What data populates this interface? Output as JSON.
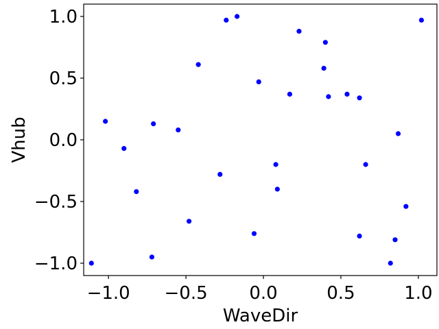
{
  "chart_data": {
    "type": "scatter",
    "title": "",
    "xlabel": "WaveDir",
    "ylabel": "Vhub",
    "xlim": [
      -1.16,
      1.12
    ],
    "ylim": [
      -1.1,
      1.1
    ],
    "xticks": [
      -1.0,
      -0.5,
      0.0,
      0.5,
      1.0
    ],
    "yticks": [
      -1.0,
      -0.5,
      0.0,
      0.5,
      1.0
    ],
    "xtick_labels": [
      "−1.0",
      "−0.5",
      "0.0",
      "0.5",
      "1.0"
    ],
    "ytick_labels": [
      "−1.0",
      "−0.5",
      "0.0",
      "0.5",
      "1.0"
    ],
    "grid": false,
    "marker_color": "#0000ff",
    "series": [
      {
        "x": [
          -1.11,
          -1.02,
          -0.9,
          -0.82,
          -0.72,
          -0.71,
          -0.55,
          -0.48,
          -0.42,
          -0.28,
          -0.24,
          -0.17,
          -0.06,
          -0.03,
          0.08,
          0.09,
          0.17,
          0.23,
          0.39,
          0.4,
          0.42,
          0.54,
          0.62,
          0.62,
          0.66,
          0.82,
          0.85,
          0.87,
          0.92,
          1.02
        ],
        "y": [
          -1.0,
          0.15,
          -0.07,
          -0.42,
          -0.95,
          0.13,
          0.08,
          -0.66,
          0.61,
          -0.28,
          0.97,
          1.0,
          -0.76,
          0.47,
          -0.2,
          -0.4,
          0.37,
          0.88,
          0.58,
          0.79,
          0.35,
          0.37,
          0.34,
          -0.78,
          -0.2,
          -1.0,
          -0.81,
          0.05,
          -0.54,
          0.97
        ]
      }
    ]
  }
}
